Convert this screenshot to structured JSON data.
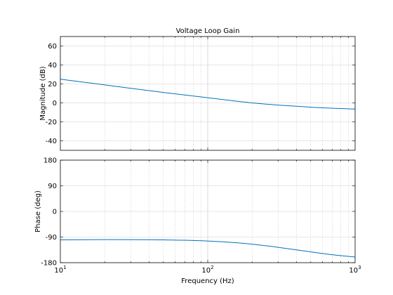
{
  "chart_data": [
    {
      "type": "line",
      "title": "Voltage Loop Gain",
      "xlabel": "",
      "ylabel": "Magnitude (dB)",
      "xscale": "log",
      "xlim": [
        10,
        1000
      ],
      "ylim": [
        -50,
        70
      ],
      "yticks": [
        "-40",
        "-20",
        "0",
        "20",
        "40",
        "60"
      ],
      "grid": true,
      "color": "#0072bd",
      "x": [
        10,
        20,
        50,
        100,
        200,
        500,
        1000
      ],
      "y": [
        25,
        19,
        11,
        5.5,
        0,
        -4.5,
        -6.5
      ]
    },
    {
      "type": "line",
      "title": "",
      "xlabel": "Frequency  (Hz)",
      "ylabel": "Phase (deg)",
      "xscale": "log",
      "xlim": [
        10,
        1000
      ],
      "ylim": [
        -180,
        180
      ],
      "yticks": [
        "-180",
        "-90",
        "0",
        "90",
        "180"
      ],
      "xticks": [
        {
          "base": "10",
          "exp": "1"
        },
        {
          "base": "10",
          "exp": "2"
        },
        {
          "base": "10",
          "exp": "3"
        }
      ],
      "grid": true,
      "color": "#0072bd",
      "x": [
        10,
        20,
        50,
        100,
        200,
        400,
        700,
        1000
      ],
      "y": [
        -100,
        -99,
        -100,
        -104,
        -115,
        -135,
        -152,
        -160
      ]
    }
  ]
}
